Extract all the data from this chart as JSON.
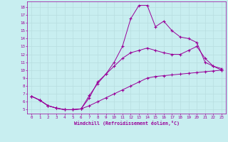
{
  "xlabel": "Windchill (Refroidissement éolien,°C)",
  "bg_color": "#c8eef0",
  "line_color": "#990099",
  "grid_color": "#b8dde0",
  "x_ticks": [
    0,
    1,
    2,
    3,
    4,
    5,
    6,
    7,
    8,
    9,
    10,
    11,
    12,
    13,
    14,
    15,
    16,
    17,
    18,
    19,
    20,
    21,
    22,
    23
  ],
  "y_ticks": [
    5,
    6,
    7,
    8,
    9,
    10,
    11,
    12,
    13,
    14,
    15,
    16,
    17,
    18
  ],
  "xlim": [
    -0.5,
    23.5
  ],
  "ylim": [
    4.5,
    18.7
  ],
  "series": [
    [
      6.7,
      6.2,
      5.5,
      5.2,
      5.0,
      5.0,
      5.1,
      5.5,
      6.0,
      6.5,
      7.0,
      7.5,
      8.0,
      8.5,
      9.0,
      9.2,
      9.3,
      9.4,
      9.5,
      9.6,
      9.7,
      9.8,
      9.9,
      10.0
    ],
    [
      6.7,
      6.2,
      5.5,
      5.2,
      5.0,
      5.0,
      5.1,
      6.5,
      8.5,
      9.5,
      10.5,
      11.5,
      12.2,
      12.5,
      12.8,
      12.5,
      12.2,
      12.0,
      12.0,
      12.5,
      13.0,
      11.5,
      10.5,
      10.2
    ],
    [
      6.7,
      6.2,
      5.5,
      5.2,
      5.0,
      5.0,
      5.1,
      6.8,
      8.3,
      9.5,
      11.0,
      13.0,
      16.5,
      18.2,
      18.2,
      15.5,
      16.2,
      15.0,
      14.2,
      14.0,
      13.5,
      11.0,
      10.5,
      10.0
    ]
  ]
}
